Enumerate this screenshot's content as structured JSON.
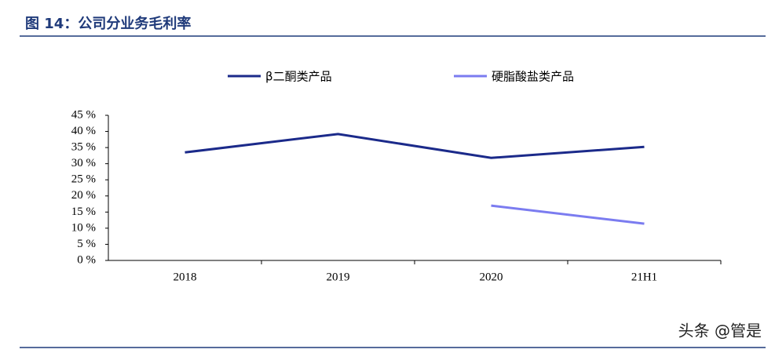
{
  "chart_data": {
    "type": "line",
    "title": "图 14：公司分业务毛利率",
    "categories": [
      "2018",
      "2019",
      "2020",
      "21H1"
    ],
    "series": [
      {
        "name": "β二酮类产品",
        "color": "#1b2a8a",
        "values": [
          33.5,
          39.2,
          31.8,
          35.2
        ]
      },
      {
        "name": "硬脂酸盐类产品",
        "color": "#7b7cf0",
        "values": [
          null,
          null,
          17.0,
          11.4
        ]
      }
    ],
    "ylim": [
      0,
      45
    ],
    "yticks": [
      {
        "value": 0,
        "label": "0 %"
      },
      {
        "value": 5,
        "label": "5 %"
      },
      {
        "value": 10,
        "label": "10 %"
      },
      {
        "value": 15,
        "label": "15 %"
      },
      {
        "value": 20,
        "label": "20 %"
      },
      {
        "value": 25,
        "label": "25 %"
      },
      {
        "value": 30,
        "label": "30 %"
      },
      {
        "value": 35,
        "label": "35 %"
      },
      {
        "value": 40,
        "label": "40 %"
      },
      {
        "value": 45,
        "label": "45 %"
      }
    ],
    "legend": "top",
    "watermark": "头条 @管是"
  }
}
